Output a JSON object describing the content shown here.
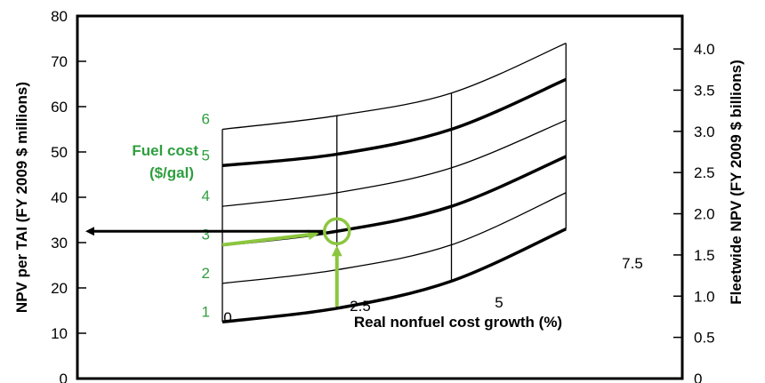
{
  "chart_data": {
    "type": "line",
    "left_axis": {
      "label": "NPV per TAI (FY 2009 $ millions)",
      "range": [
        0,
        80
      ],
      "ticks": [
        "0",
        "10",
        "20",
        "30",
        "40",
        "50",
        "60",
        "70",
        "80"
      ]
    },
    "right_axis": {
      "label": "Fleetwide NPV (FY 2009 $ billions)",
      "range": [
        0,
        4.4
      ],
      "ticks": [
        "0",
        "0.5",
        "1.0",
        "1.5",
        "2.0",
        "2.5",
        "3.0",
        "3.5",
        "4.0"
      ]
    },
    "x_axis": {
      "label": "Real nonfuel cost growth (%)",
      "ticks": [
        "0",
        "2.5",
        "5",
        "7.5"
      ]
    },
    "fuel_axis": {
      "title_line1": "Fuel cost",
      "title_line2": "($/gal)",
      "ticks": [
        "1",
        "2",
        "3",
        "4",
        "5",
        "6"
      ]
    },
    "x": [
      0,
      2.5,
      5,
      7.5
    ],
    "series": [
      {
        "fuel": 1,
        "values": [
          12.5,
          15.5,
          21.5,
          33
        ]
      },
      {
        "fuel": 2,
        "values": [
          21,
          24,
          29.5,
          41
        ]
      },
      {
        "fuel": 3,
        "values": [
          29.5,
          32.5,
          38,
          49
        ]
      },
      {
        "fuel": 4,
        "values": [
          38,
          41,
          46.5,
          57
        ]
      },
      {
        "fuel": 5,
        "values": [
          47,
          49.5,
          55,
          66
        ]
      },
      {
        "fuel": 6,
        "values": [
          55,
          58,
          63,
          74
        ]
      }
    ],
    "highlight": {
      "fuel": 3,
      "x": 2.5,
      "npv": 32.5
    },
    "grid": false,
    "colors": {
      "curves": "#000000",
      "annotation": "#8cc63f",
      "fuel_labels": "#2f9e3f"
    }
  }
}
